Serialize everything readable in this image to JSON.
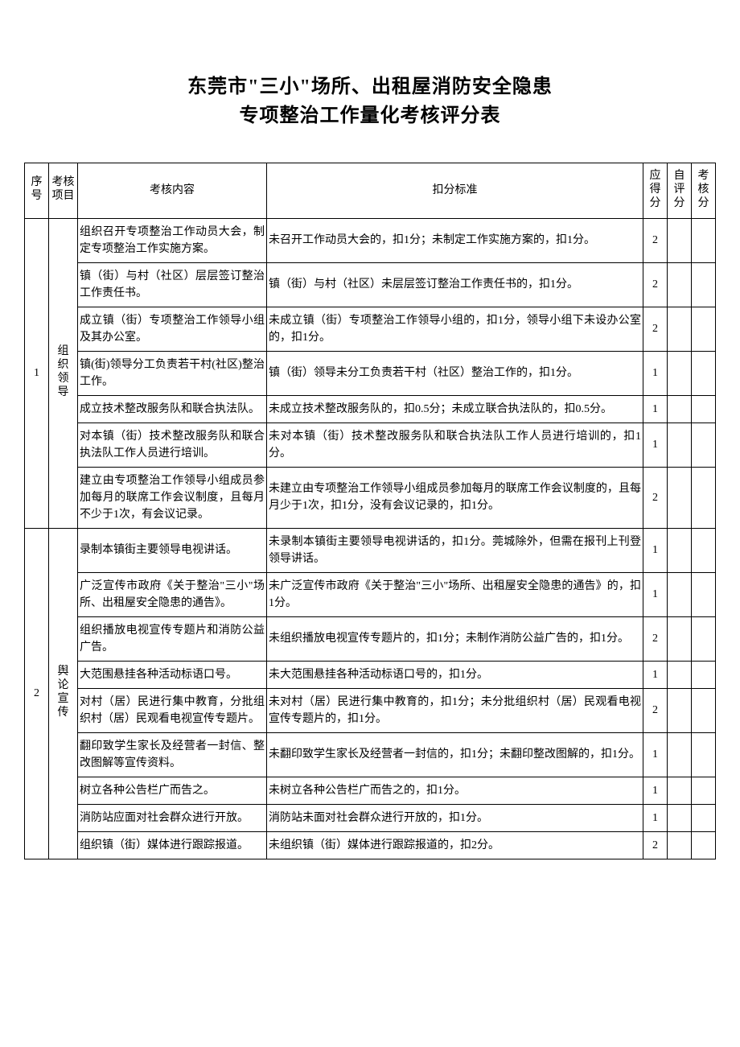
{
  "title": {
    "line1": "东莞市\"三小\"场所、出租屋消防安全隐患",
    "line2": "专项整治工作量化考核评分表"
  },
  "headers": {
    "seq": "序号",
    "category": "考核项目",
    "content": "考核内容",
    "deduct": "扣分标准",
    "points": "应得分",
    "self": "自评分",
    "audit": "考核分"
  },
  "groups": [
    {
      "seq": "1",
      "category": "组织领导",
      "rows": [
        {
          "content": "组织召开专项整治工作动员大会，制定专项整治工作实施方案。",
          "deduct": "未召开工作动员大会的，扣1分；未制定工作实施方案的，扣1分。",
          "points": "2"
        },
        {
          "content": "镇（街）与村（社区）层层签订整治工作责任书。",
          "deduct": "镇（街）与村（社区）未层层签订整治工作责任书的，扣1分。",
          "points": "2"
        },
        {
          "content": "成立镇（街）专项整治工作领导小组及其办公室。",
          "deduct": "未成立镇（街）专项整治工作领导小组的，扣1分，领导小组下未设办公室的，扣1分。",
          "points": "2"
        },
        {
          "content": "镇(街)领导分工负责若干村(社区)整治工作。",
          "deduct": "镇（街）领导未分工负责若干村（社区）整治工作的，扣1分。",
          "points": "1"
        },
        {
          "content": "成立技术整改服务队和联合执法队。",
          "deduct": "未成立技术整改服务队的，扣0.5分；未成立联合执法队的，扣0.5分。",
          "points": "1"
        },
        {
          "content": "对本镇（街）技术整改服务队和联合执法队工作人员进行培训。",
          "deduct": "未对本镇（街）技术整改服务队和联合执法队工作人员进行培训的，扣1分。",
          "points": "1"
        },
        {
          "content": "建立由专项整治工作领导小组成员参加每月的联席工作会议制度，且每月不少于1次，有会议记录。",
          "deduct": "未建立由专项整治工作领导小组成员参加每月的联席工作会议制度的，且每月少于1次，扣1分，没有会议记录的，扣1分。",
          "points": "2"
        }
      ]
    },
    {
      "seq": "2",
      "category": "舆论宣传",
      "rows": [
        {
          "content": "录制本镇街主要领导电视讲话。",
          "deduct": "未录制本镇街主要领导电视讲话的，扣1分。莞城除外，但需在报刊上刊登领导讲话。",
          "points": "1"
        },
        {
          "content": "广泛宣传市政府《关于整治\"三小\"场所、出租屋安全隐患的通告》。",
          "deduct": "未广泛宣传市政府《关于整治\"三小\"场所、出租屋安全隐患的通告》的，扣1分。",
          "points": "1"
        },
        {
          "content": "组织播放电视宣传专题片和消防公益广告。",
          "deduct": "未组织播放电视宣传专题片的，扣1分；未制作消防公益广告的，扣1分。",
          "points": "2"
        },
        {
          "content": "大范围悬挂各种活动标语口号。",
          "deduct": "未大范围悬挂各种活动标语口号的，扣1分。",
          "points": "1"
        },
        {
          "content": "对村（居）民进行集中教育，分批组织村（居）民观看电视宣传专题片。",
          "deduct": "未对村（居）民进行集中教育的，扣1分；未分批组织村（居）民观看电视宣传专题片的，扣1分。",
          "points": "2"
        },
        {
          "content": "翻印致学生家长及经营者一封信、整改图解等宣传资料。",
          "deduct": "未翻印致学生家长及经营者一封信的，扣1分；未翻印整改图解的，扣1分。",
          "points": "1"
        },
        {
          "content": "树立各种公告栏广而告之。",
          "deduct": "未树立各种公告栏广而告之的，扣1分。",
          "points": "1"
        },
        {
          "content": "消防站应面对社会群众进行开放。",
          "deduct": "消防站未面对社会群众进行开放的，扣1分。",
          "points": "1"
        },
        {
          "content": "组织镇（街）媒体进行跟踪报道。",
          "deduct": "未组织镇（街）媒体进行跟踪报道的，扣2分。",
          "points": "2"
        }
      ]
    }
  ],
  "style": {
    "background": "#ffffff",
    "text_color": "#000000",
    "border_color": "#000000",
    "title_fontsize": 24,
    "body_fontsize": 14
  }
}
